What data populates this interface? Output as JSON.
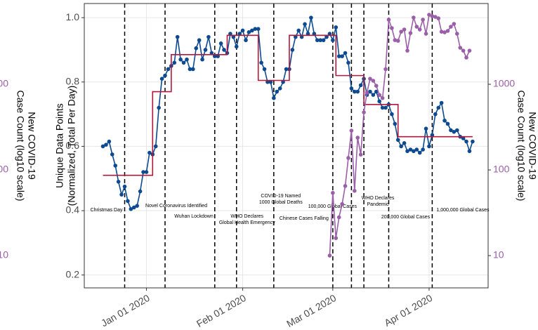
{
  "chart_data": {
    "type": "line",
    "ylabel": [
      "Unique Data Points",
      "(Normalized, Total Per Day)"
    ],
    "y2label": [
      "New COVID-19",
      "Case Count (log10 scale)"
    ],
    "xlim": [
      "2019-12-12",
      "2020-04-20"
    ],
    "xticks": [
      {
        "value": "2020-01-01",
        "label": "Jan 01 2020"
      },
      {
        "value": "2020-02-01",
        "label": "Feb 01 2020"
      },
      {
        "value": "2020-03-01",
        "label": "Mar 01 2020"
      },
      {
        "value": "2020-04-01",
        "label": "Apr 01 2020"
      }
    ],
    "ylim": [
      0.16,
      1.044
    ],
    "yticks": [
      0.2,
      0.4,
      0.6,
      0.8,
      {
        "value": 1,
        "label": "1.0"
      }
    ],
    "y2lim": [
      4.2,
      8770
    ],
    "y2scale": "log",
    "y2ticks": [
      10,
      100,
      1000
    ],
    "grid": true,
    "series": [
      {
        "color": "#0d4a8f",
        "points": true,
        "x": [
          "2019-12-18",
          "2019-12-19",
          "2019-12-20",
          "2019-12-21",
          "2019-12-22",
          "2019-12-23",
          "2019-12-24",
          "2019-12-25",
          "2019-12-26",
          "2019-12-27",
          "2019-12-28",
          "2019-12-29",
          "2019-12-30",
          "2019-12-31",
          "2020-01-01",
          "2020-01-02",
          "2020-01-03",
          "2020-01-04",
          "2020-01-05",
          "2020-01-06",
          "2020-01-07",
          "2020-01-08",
          "2020-01-09",
          "2020-01-10",
          "2020-01-11",
          "2020-01-12",
          "2020-01-13",
          "2020-01-14",
          "2020-01-15",
          "2020-01-16",
          "2020-01-17",
          "2020-01-18",
          "2020-01-19",
          "2020-01-20",
          "2020-01-21",
          "2020-01-22",
          "2020-01-23",
          "2020-01-24",
          "2020-01-25",
          "2020-01-26",
          "2020-01-27",
          "2020-01-28",
          "2020-01-29",
          "2020-01-30",
          "2020-01-31",
          "2020-02-01",
          "2020-02-02",
          "2020-02-03",
          "2020-02-04",
          "2020-02-05",
          "2020-02-06",
          "2020-02-07",
          "2020-02-08",
          "2020-02-09",
          "2020-02-10",
          "2020-02-11",
          "2020-02-12",
          "2020-02-13",
          "2020-02-14",
          "2020-02-15",
          "2020-02-16",
          "2020-02-17",
          "2020-02-18",
          "2020-02-19",
          "2020-02-20",
          "2020-02-21",
          "2020-02-22",
          "2020-02-23",
          "2020-02-24",
          "2020-02-25",
          "2020-02-26",
          "2020-02-27",
          "2020-02-28",
          "2020-02-29",
          "2020-03-01",
          "2020-03-02",
          "2020-03-03",
          "2020-03-04",
          "2020-03-05",
          "2020-03-06",
          "2020-03-07",
          "2020-03-08",
          "2020-03-09",
          "2020-03-10",
          "2020-03-11",
          "2020-03-12",
          "2020-03-13",
          "2020-03-14",
          "2020-03-15",
          "2020-03-16",
          "2020-03-17",
          "2020-03-18",
          "2020-03-19",
          "2020-03-20",
          "2020-03-21",
          "2020-03-22",
          "2020-03-23",
          "2020-03-24",
          "2020-03-25",
          "2020-03-26",
          "2020-03-27",
          "2020-03-28",
          "2020-03-29",
          "2020-03-30",
          "2020-03-31",
          "2020-04-01",
          "2020-04-02",
          "2020-04-03",
          "2020-04-04",
          "2020-04-05",
          "2020-04-06",
          "2020-04-07",
          "2020-04-08",
          "2020-04-09",
          "2020-04-10",
          "2020-04-11",
          "2020-04-12",
          "2020-04-13",
          "2020-04-14",
          "2020-04-15"
        ],
        "values": [
          0.6,
          0.605,
          0.615,
          0.575,
          0.54,
          0.49,
          0.45,
          0.475,
          0.43,
          0.405,
          0.41,
          0.415,
          0.46,
          0.52,
          0.52,
          0.58,
          0.575,
          0.6,
          0.72,
          0.81,
          0.82,
          0.84,
          0.85,
          0.86,
          0.94,
          0.87,
          0.86,
          0.87,
          0.84,
          0.84,
          0.905,
          0.93,
          0.87,
          0.9,
          0.94,
          0.89,
          0.88,
          0.88,
          0.92,
          0.9,
          0.89,
          0.95,
          0.94,
          0.91,
          0.95,
          0.96,
          0.93,
          0.955,
          0.96,
          0.965,
          0.965,
          0.86,
          0.84,
          0.8,
          0.8,
          0.75,
          0.77,
          0.78,
          0.8,
          0.84,
          0.84,
          0.9,
          0.94,
          0.96,
          0.94,
          0.98,
          0.95,
          1.0,
          0.95,
          0.93,
          0.93,
          0.93,
          0.94,
          0.95,
          0.93,
          0.97,
          0.88,
          0.88,
          0.89,
          0.86,
          0.78,
          0.77,
          0.77,
          0.79,
          0.81,
          0.76,
          0.77,
          0.76,
          0.77,
          0.74,
          0.72,
          0.72,
          0.73,
          0.7,
          0.67,
          0.62,
          0.6,
          0.61,
          0.585,
          0.59,
          0.585,
          0.59,
          0.58,
          0.59,
          0.655,
          0.6,
          0.635,
          0.7,
          0.72,
          0.735,
          0.68,
          0.67,
          0.65,
          0.645,
          0.65,
          0.63,
          0.625,
          0.615,
          0.585,
          0.615
        ]
      },
      {
        "color": "#b2183c",
        "step": "post",
        "x": [
          "2019-12-18",
          "2020-01-03",
          "2020-01-09",
          "2020-01-27",
          "2020-02-06",
          "2020-02-16",
          "2020-03-02",
          "2020-03-11",
          "2020-03-22",
          "2020-04-15"
        ],
        "values": [
          0.51,
          0.77,
          0.885,
          0.945,
          0.805,
          0.945,
          0.82,
          0.73,
          0.63,
          0.63
        ]
      },
      {
        "color": "#9a5fa8",
        "points": true,
        "axis": "y2",
        "x": [
          "2020-02-29",
          "2020-03-01",
          "2020-03-02",
          "2020-03-03",
          "2020-03-04",
          "2020-03-05",
          "2020-03-06",
          "2020-03-07",
          "2020-03-08",
          "2020-03-09",
          "2020-03-10",
          "2020-03-11",
          "2020-03-12",
          "2020-03-13",
          "2020-03-14",
          "2020-03-15",
          "2020-03-16",
          "2020-03-17",
          "2020-03-18",
          "2020-03-19",
          "2020-03-20",
          "2020-03-21",
          "2020-03-22",
          "2020-03-23",
          "2020-03-24",
          "2020-03-25",
          "2020-03-26",
          "2020-03-27",
          "2020-03-28",
          "2020-03-29",
          "2020-03-30",
          "2020-03-31",
          "2020-04-01",
          "2020-04-02",
          "2020-04-03",
          "2020-04-04",
          "2020-04-05",
          "2020-04-06",
          "2020-04-07",
          "2020-04-08",
          "2020-04-09",
          "2020-04-10",
          "2020-04-11",
          "2020-04-12",
          "2020-04-13",
          "2020-04-14"
        ],
        "values": [
          10,
          54,
          16,
          28,
          40,
          65,
          138,
          288,
          57,
          238,
          151,
          470,
          800,
          1160,
          1100,
          960,
          750,
          690,
          1500,
          5680,
          4530,
          3280,
          3220,
          4110,
          4360,
          2470,
          3960,
          6010,
          4700,
          4360,
          5680,
          3890,
          6480,
          6240,
          6120,
          5890,
          4110,
          4040,
          4200,
          4700,
          5070,
          3890,
          2670,
          2470,
          2050,
          2470
        ]
      }
    ],
    "events": [
      {
        "x": "2019-12-25",
        "label": [
          "Christmas Day"
        ]
      },
      {
        "x": "2020-01-07",
        "label": [
          "Novel Coronavirus Identified"
        ]
      },
      {
        "x": "2020-01-23",
        "label": [
          "Wuhan Lockdown"
        ]
      },
      {
        "x": "2020-01-30",
        "label": [
          "WHO Declares",
          "Global Health Emergency"
        ]
      },
      {
        "x": "2020-02-11",
        "label": [
          "COVID-19 Named",
          "1000 Global Deaths"
        ]
      },
      {
        "x": "2020-03-01",
        "label": [
          "Chinese Cases Falling"
        ]
      },
      {
        "x": "2020-03-07",
        "label": [
          "100,000 Global Cases"
        ]
      },
      {
        "x": "2020-03-11",
        "label": [
          "WHO Declares",
          "Pandemic"
        ]
      },
      {
        "x": "2020-03-19",
        "label": [
          "200,000 Global Cases"
        ]
      },
      {
        "x": "2020-04-02",
        "label": [
          "1,000,000 Global Cases"
        ]
      }
    ]
  }
}
